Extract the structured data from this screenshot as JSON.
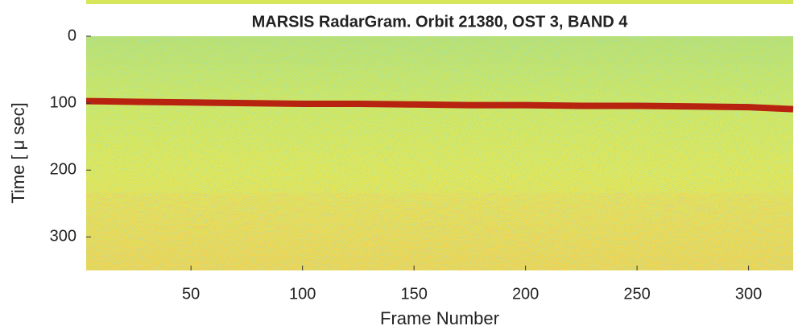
{
  "chart_data": {
    "type": "line",
    "title": "MARSIS RadarGram. Orbit 21380, OST 3, BAND 4",
    "x_label": "Frame Number",
    "y_label": "Time [ μ sec]",
    "x": [
      3,
      25,
      50,
      75,
      100,
      125,
      150,
      175,
      200,
      225,
      250,
      275,
      300,
      320
    ],
    "series": [
      {
        "color": "#b40000",
        "values": [
          97,
          98,
          99,
          100,
          101,
          101,
          102,
          103,
          103,
          104,
          104,
          105,
          106,
          109
        ]
      }
    ],
    "xlim": [
      3,
      320
    ],
    "ylim": [
      0,
      350
    ],
    "y_inverted": true,
    "xticks": [
      50,
      100,
      150,
      200,
      250,
      300
    ],
    "yticks": [
      0,
      100,
      200,
      300
    ]
  }
}
